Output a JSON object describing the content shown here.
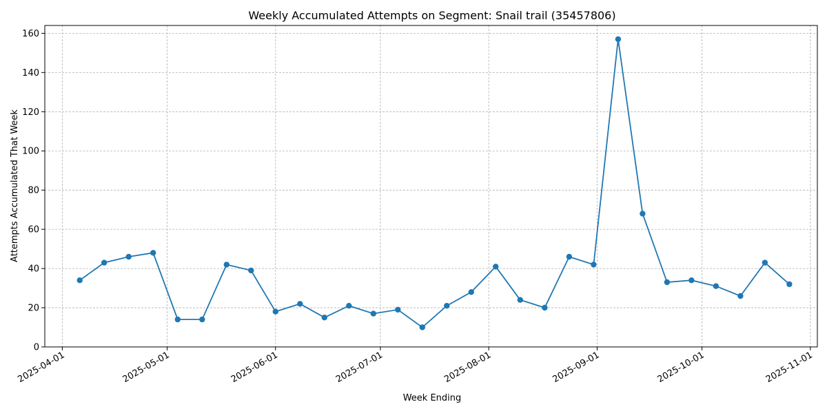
{
  "chart_data": {
    "type": "line",
    "title": "Weekly Accumulated Attempts on Segment: Snail trail (35457806)",
    "xlabel": "Week Ending",
    "ylabel": "Attempts Accumulated That Week",
    "x_tick_labels": [
      "2025-04-01",
      "2025-05-01",
      "2025-06-01",
      "2025-07-01",
      "2025-08-01",
      "2025-09-01",
      "2025-10-01",
      "2025-11-01"
    ],
    "y_tick_labels": [
      "0",
      "20",
      "40",
      "60",
      "80",
      "100",
      "120",
      "140",
      "160"
    ],
    "xlim": [
      "2025-03-27",
      "2025-11-03"
    ],
    "ylim": [
      0,
      164
    ],
    "grid": true,
    "marker": "circle",
    "color": "#1f77b4",
    "series": [
      {
        "x": [
          "2025-04-06",
          "2025-04-13",
          "2025-04-20",
          "2025-04-27",
          "2025-05-04",
          "2025-05-11",
          "2025-05-18",
          "2025-05-25",
          "2025-06-01",
          "2025-06-08",
          "2025-06-15",
          "2025-06-22",
          "2025-06-29",
          "2025-07-06",
          "2025-07-13",
          "2025-07-20",
          "2025-07-27",
          "2025-08-03",
          "2025-08-10",
          "2025-08-17",
          "2025-08-24",
          "2025-08-31",
          "2025-09-07",
          "2025-09-14",
          "2025-09-21",
          "2025-09-28",
          "2025-10-05",
          "2025-10-12",
          "2025-10-19",
          "2025-10-26"
        ],
        "values": [
          34,
          43,
          46,
          48,
          14,
          14,
          42,
          39,
          18,
          22,
          15,
          21,
          17,
          19,
          10,
          21,
          28,
          41,
          24,
          20,
          46,
          42,
          157,
          68,
          33,
          34,
          31,
          26,
          43,
          32
        ]
      }
    ]
  }
}
